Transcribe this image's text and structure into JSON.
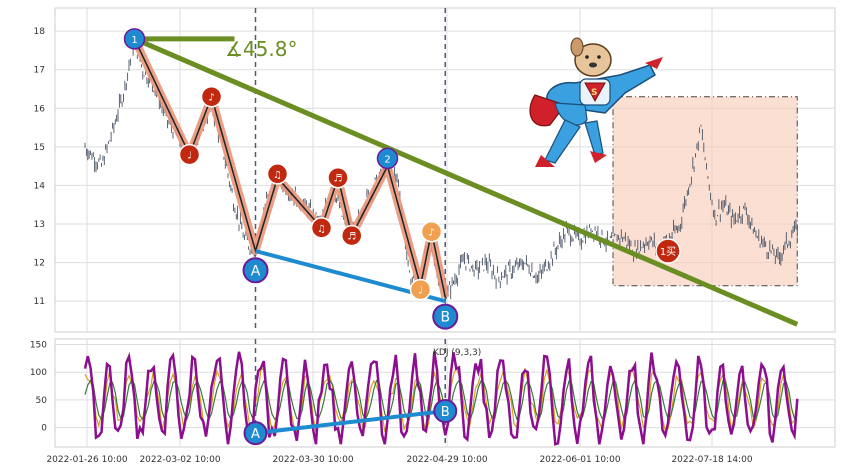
{
  "chart_data": [
    {
      "type": "line",
      "title": "",
      "ylim": [
        10.2,
        18.6
      ],
      "y_ticks": [
        11,
        12,
        13,
        14,
        15,
        16,
        17,
        18
      ],
      "x_tick_labels": [
        "2022-01-26 10:00",
        "2022-03-02 10:00",
        "2022-03-30 10:00",
        "2022-04-29 10:00",
        "2022-06-01 10:00",
        "2022-07-18 14:00"
      ],
      "grid": true,
      "price_path": [
        [
          0,
          15.0
        ],
        [
          6,
          14.5
        ],
        [
          10,
          15.4
        ],
        [
          14,
          16.4
        ],
        [
          18,
          17.8
        ],
        [
          21,
          17.0
        ],
        [
          25,
          16.6
        ],
        [
          30,
          15.7
        ],
        [
          36,
          15.0
        ],
        [
          38,
          14.8
        ],
        [
          42,
          15.4
        ],
        [
          46,
          16.1
        ],
        [
          50,
          15.0
        ],
        [
          54,
          13.6
        ],
        [
          58,
          12.6
        ],
        [
          62,
          12.3
        ],
        [
          66,
          13.6
        ],
        [
          70,
          14.2
        ],
        [
          74,
          13.9
        ],
        [
          78,
          13.6
        ],
        [
          82,
          13.3
        ],
        [
          86,
          13.0
        ],
        [
          90,
          14.0
        ],
        [
          94,
          13.1
        ],
        [
          98,
          12.8
        ],
        [
          102,
          13.6
        ],
        [
          106,
          14.1
        ],
        [
          110,
          14.5
        ],
        [
          114,
          14.1
        ],
        [
          118,
          11.6
        ],
        [
          122,
          11.5
        ],
        [
          125,
          12.7
        ],
        [
          128,
          11.8
        ],
        [
          131,
          11.1
        ],
        [
          134,
          11.5
        ],
        [
          138,
          12.1
        ],
        [
          142,
          11.8
        ],
        [
          146,
          12.0
        ],
        [
          150,
          11.6
        ],
        [
          155,
          11.8
        ],
        [
          160,
          12.0
        ],
        [
          165,
          11.6
        ],
        [
          170,
          12.2
        ],
        [
          175,
          12.8
        ],
        [
          180,
          12.6
        ],
        [
          185,
          12.9
        ],
        [
          190,
          12.5
        ],
        [
          195,
          12.7
        ],
        [
          200,
          12.3
        ],
        [
          205,
          12.6
        ],
        [
          208,
          12.4
        ],
        [
          212,
          12.6
        ],
        [
          216,
          12.9
        ],
        [
          219,
          13.8
        ],
        [
          222,
          14.8
        ],
        [
          224,
          15.5
        ],
        [
          226,
          14.4
        ],
        [
          229,
          13.2
        ],
        [
          232,
          13.5
        ],
        [
          236,
          13.1
        ],
        [
          240,
          13.4
        ],
        [
          244,
          12.7
        ],
        [
          248,
          12.4
        ],
        [
          252,
          12.1
        ],
        [
          256,
          12.6
        ],
        [
          259,
          12.9
        ]
      ],
      "wave": [
        [
          18,
          17.8
        ],
        [
          38,
          14.8
        ],
        [
          46,
          16.3
        ],
        [
          62,
          12.3
        ],
        [
          70,
          14.2
        ],
        [
          86,
          12.9
        ],
        [
          92,
          14.2
        ],
        [
          97,
          12.7
        ],
        [
          110,
          14.5
        ],
        [
          122,
          11.4
        ],
        [
          126,
          12.8
        ],
        [
          131,
          11.1
        ]
      ],
      "wave_markers": [
        {
          "x": 18,
          "y": 17.8,
          "symbol": "1",
          "color": "#1e8bd0"
        },
        {
          "x": 38,
          "y": 14.8,
          "symbol": "♩",
          "color": "#c0280f"
        },
        {
          "x": 46,
          "y": 16.3,
          "symbol": "♪",
          "color": "#c0280f"
        },
        {
          "x": 70,
          "y": 14.3,
          "symbol": "♫",
          "color": "#c0280f"
        },
        {
          "x": 86,
          "y": 12.9,
          "symbol": "♫",
          "color": "#c0280f"
        },
        {
          "x": 92,
          "y": 14.2,
          "symbol": "♬",
          "color": "#c0280f"
        },
        {
          "x": 97,
          "y": 12.7,
          "symbol": "♬",
          "color": "#c0280f"
        },
        {
          "x": 110,
          "y": 14.7,
          "symbol": "2",
          "color": "#1e8bd0"
        },
        {
          "x": 122,
          "y": 11.3,
          "symbol": "♩",
          "color": "#f0a050"
        },
        {
          "x": 126,
          "y": 12.8,
          "symbol": "♪",
          "color": "#f0a050"
        },
        {
          "x": 212,
          "y": 12.3,
          "symbol": "1买",
          "color": "#c0280f"
        }
      ],
      "point_A": {
        "x": 62,
        "y": 11.8,
        "label": "A"
      },
      "point_B": {
        "x": 131,
        "y": 10.6,
        "label": "B"
      },
      "trend_line": [
        [
          18,
          17.8
        ],
        [
          259,
          10.4
        ]
      ],
      "support_line": [
        [
          62,
          12.3
        ],
        [
          131,
          11.0
        ]
      ],
      "angle_annotation": "∡45.8°",
      "vertical_markers_x": [
        62,
        131
      ],
      "highlight_box": {
        "x": [
          192,
          259
        ],
        "y": [
          11.4,
          16.3
        ]
      }
    },
    {
      "type": "line",
      "title": "KDJ (9,3,3)",
      "ylim": [
        -35,
        160
      ],
      "y_ticks": [
        0,
        50,
        100,
        150
      ],
      "grid": true,
      "divergence_line": {
        "from": [
          62,
          -10
        ],
        "to": [
          131,
          30
        ]
      },
      "point_A": {
        "x": 62,
        "y": -10,
        "label": "A"
      },
      "point_B": {
        "x": 131,
        "y": 30,
        "label": "B"
      }
    }
  ],
  "decoration": {
    "image": "superhero-dog",
    "emblem_letter": "S"
  }
}
